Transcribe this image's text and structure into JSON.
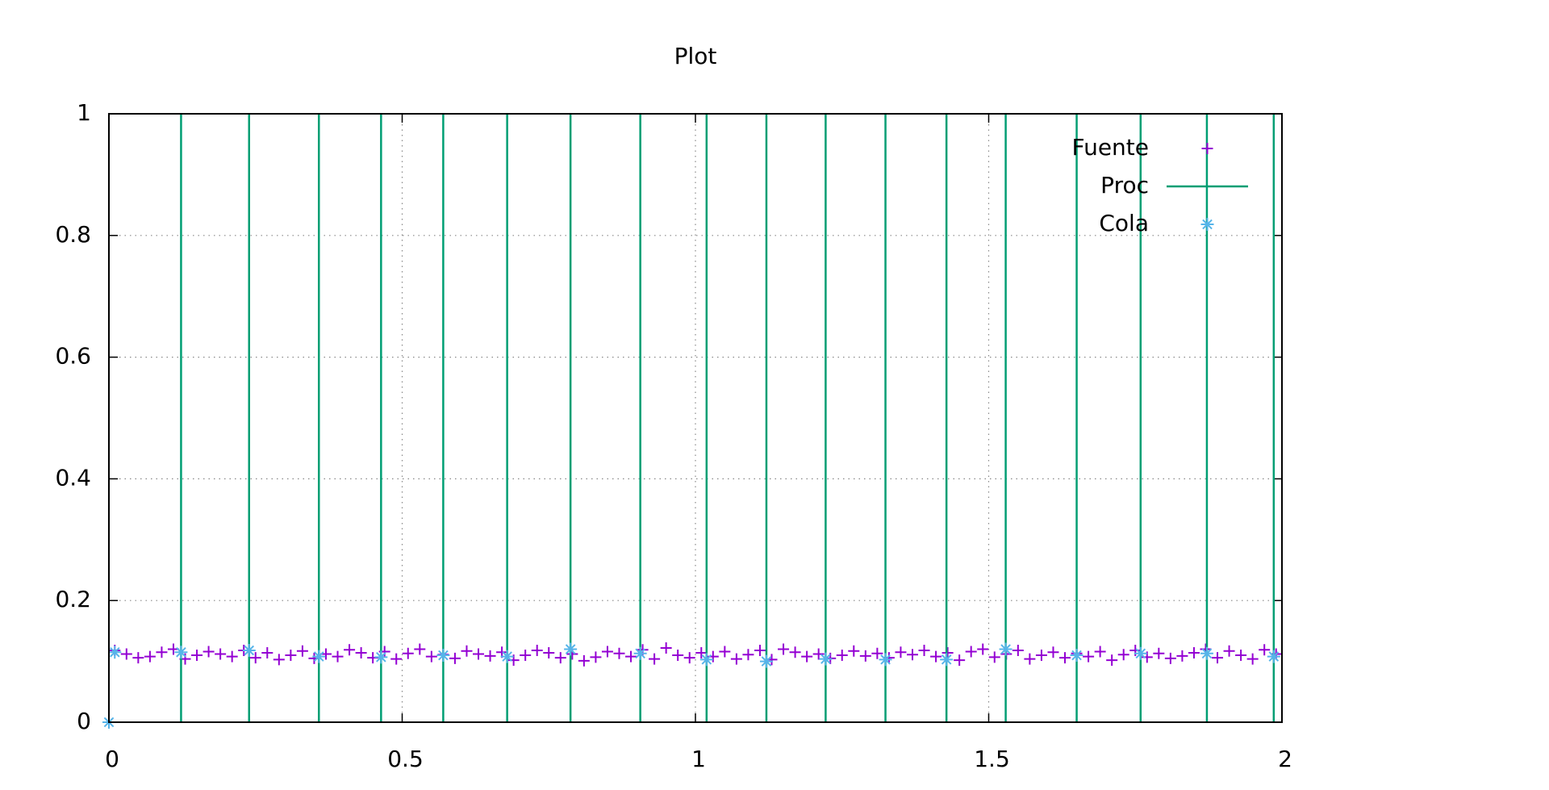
{
  "chart_data": {
    "type": "scatter",
    "title": "Plot",
    "xlim": [
      0,
      2
    ],
    "xticks": [
      0,
      0.5,
      1,
      1.5,
      2
    ],
    "ylim": [
      0,
      1
    ],
    "yticks": [
      0,
      0.2,
      0.4,
      0.6,
      0.8,
      1
    ],
    "grid": true,
    "legend": "top right",
    "series": [
      {
        "name": "Fuente",
        "color": "#9400d3",
        "marker": "plus",
        "x": [
          0.01,
          0.03,
          0.05,
          0.07,
          0.09,
          0.11,
          0.13,
          0.15,
          0.17,
          0.19,
          0.21,
          0.23,
          0.25,
          0.27,
          0.29,
          0.31,
          0.33,
          0.35,
          0.37,
          0.39,
          0.41,
          0.43,
          0.45,
          0.47,
          0.49,
          0.51,
          0.53,
          0.55,
          0.57,
          0.59,
          0.61,
          0.63,
          0.65,
          0.67,
          0.69,
          0.71,
          0.73,
          0.75,
          0.77,
          0.79,
          0.81,
          0.83,
          0.85,
          0.87,
          0.89,
          0.91,
          0.93,
          0.95,
          0.97,
          0.99,
          1.01,
          1.03,
          1.05,
          1.07,
          1.09,
          1.11,
          1.13,
          1.15,
          1.17,
          1.19,
          1.21,
          1.23,
          1.25,
          1.27,
          1.29,
          1.31,
          1.33,
          1.35,
          1.37,
          1.39,
          1.41,
          1.43,
          1.45,
          1.47,
          1.49,
          1.51,
          1.53,
          1.55,
          1.57,
          1.59,
          1.61,
          1.63,
          1.65,
          1.67,
          1.69,
          1.71,
          1.73,
          1.75,
          1.77,
          1.79,
          1.81,
          1.83,
          1.85,
          1.87,
          1.89,
          1.91,
          1.93,
          1.95,
          1.97,
          1.99
        ],
        "values": [
          0.118,
          0.112,
          0.106,
          0.108,
          0.115,
          0.12,
          0.104,
          0.11,
          0.116,
          0.112,
          0.108,
          0.118,
          0.106,
          0.114,
          0.103,
          0.11,
          0.117,
          0.105,
          0.112,
          0.108,
          0.119,
          0.114,
          0.106,
          0.116,
          0.104,
          0.113,
          0.12,
          0.108,
          0.111,
          0.105,
          0.117,
          0.112,
          0.109,
          0.115,
          0.102,
          0.11,
          0.118,
          0.114,
          0.106,
          0.112,
          0.101,
          0.107,
          0.116,
          0.113,
          0.108,
          0.119,
          0.104,
          0.122,
          0.11,
          0.106,
          0.114,
          0.108,
          0.116,
          0.104,
          0.111,
          0.118,
          0.103,
          0.12,
          0.115,
          0.108,
          0.112,
          0.105,
          0.11,
          0.117,
          0.109,
          0.113,
          0.106,
          0.115,
          0.111,
          0.118,
          0.108,
          0.114,
          0.102,
          0.116,
          0.12,
          0.107,
          0.112,
          0.118,
          0.104,
          0.11,
          0.115,
          0.106,
          0.113,
          0.108,
          0.116,
          0.102,
          0.111,
          0.118,
          0.107,
          0.113,
          0.105,
          0.109,
          0.114,
          0.12,
          0.106,
          0.117,
          0.11,
          0.104,
          0.119,
          0.112
        ]
      },
      {
        "name": "Proc",
        "color": "#009e73",
        "marker": "impulse",
        "x": [
          0.123,
          0.239,
          0.358,
          0.464,
          0.57,
          0.679,
          0.787,
          0.906,
          1.019,
          1.121,
          1.222,
          1.324,
          1.428,
          1.529,
          1.65,
          1.759,
          1.872,
          1.986
        ],
        "values": [
          1,
          1,
          1,
          1,
          1,
          1,
          1,
          1,
          1,
          1,
          1,
          1,
          1,
          1,
          1,
          1,
          1,
          1
        ]
      },
      {
        "name": "Cola",
        "color": "#56b4e9",
        "marker": "star",
        "x": [
          0,
          0.01,
          0.123,
          0.239,
          0.358,
          0.464,
          0.57,
          0.679,
          0.787,
          0.906,
          1.019,
          1.121,
          1.222,
          1.324,
          1.428,
          1.529,
          1.65,
          1.759,
          1.872,
          1.986
        ],
        "values": [
          0,
          0.115,
          0.115,
          0.118,
          0.108,
          0.107,
          0.11,
          0.108,
          0.12,
          0.113,
          0.103,
          0.1,
          0.104,
          0.103,
          0.103,
          0.12,
          0.11,
          0.113,
          0.113,
          0.108
        ]
      }
    ]
  }
}
